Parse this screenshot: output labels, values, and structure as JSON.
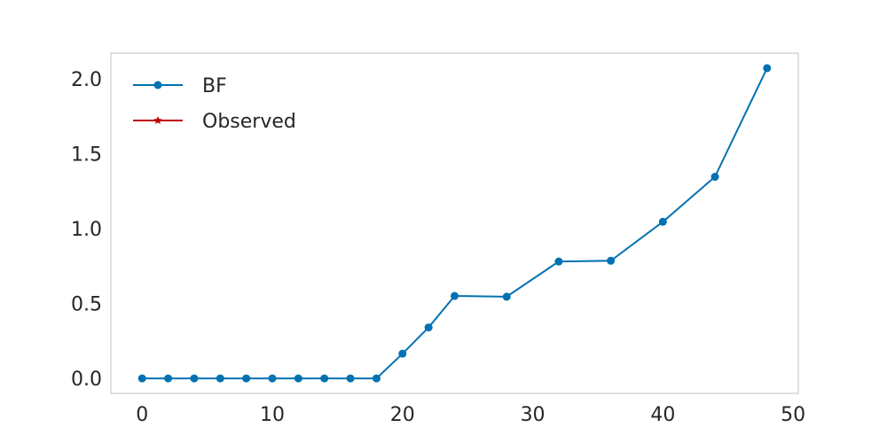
{
  "chart_data": {
    "type": "line",
    "title": "",
    "xlabel": "",
    "ylabel": "",
    "xlim": [
      -2.4,
      50.4
    ],
    "ylim": [
      -0.1,
      2.17
    ],
    "grid": false,
    "legend_position": "top-left",
    "x_ticks": [
      0,
      10,
      20,
      30,
      40,
      50
    ],
    "x_tick_labels": [
      "0",
      "10",
      "20",
      "30",
      "40",
      "50"
    ],
    "y_ticks": [
      0.0,
      0.5,
      1.0,
      1.5,
      2.0
    ],
    "y_tick_labels": [
      "0.0",
      "0.5",
      "1.0",
      "1.5",
      "2.0"
    ],
    "series": [
      {
        "name": "BF",
        "color": "#0072b2",
        "marker": "circle",
        "x": [
          0,
          2,
          4,
          6,
          8,
          10,
          12,
          14,
          16,
          18,
          20,
          22,
          24,
          28,
          32,
          36,
          40,
          44,
          48
        ],
        "y": [
          0,
          0,
          0,
          0,
          0,
          0,
          0,
          0,
          0,
          0,
          0.165,
          0.34,
          0.55,
          0.545,
          0.78,
          0.785,
          1.045,
          1.345,
          2.07
        ]
      },
      {
        "name": "Observed",
        "color": "#c00000",
        "marker": "star",
        "x": [],
        "y": []
      }
    ]
  }
}
